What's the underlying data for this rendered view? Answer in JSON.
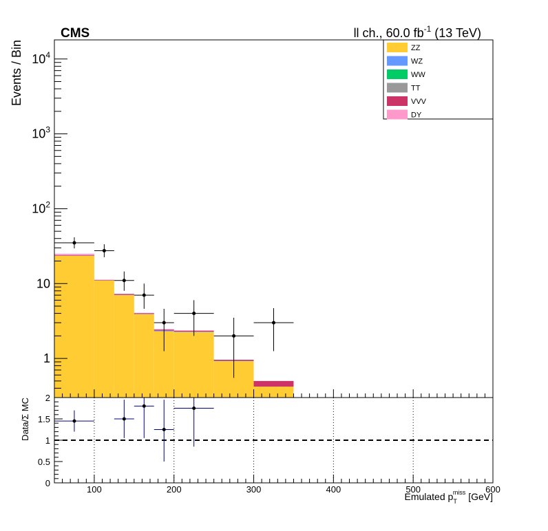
{
  "header": {
    "experiment": "CMS",
    "lumi_prefix": "ll ch., 60.0 fb",
    "lumi_exp": "-1",
    "lumi_suffix": " (13 TeV)"
  },
  "chart_data": [
    {
      "type": "bar",
      "subtype": "stacked-histogram-with-data",
      "ylabel": "Events / Bin",
      "yscale": "log",
      "ylim": [
        0.3,
        18000
      ],
      "xlim": [
        50,
        600
      ],
      "ytick_labels": [
        {
          "value": 1,
          "base": "1",
          "exp": ""
        },
        {
          "value": 10,
          "base": "10",
          "exp": ""
        },
        {
          "value": 100,
          "base": "10",
          "exp": "2"
        },
        {
          "value": 1000,
          "base": "10",
          "exp": "3"
        },
        {
          "value": 10000,
          "base": "10",
          "exp": "4"
        }
      ],
      "bin_edges": [
        50,
        100,
        125,
        150,
        175,
        200,
        250,
        300,
        350,
        400,
        500,
        600
      ],
      "series": [
        {
          "name": "ZZ",
          "color": "#ffcc33",
          "values": [
            23.5,
            11.0,
            7.0,
            3.9,
            2.3,
            2.25,
            0.92,
            0.42,
            0,
            0,
            0
          ]
        },
        {
          "name": "WZ",
          "color": "#6699ff",
          "values": [
            0.1,
            0.05,
            0.05,
            0.03,
            0.05,
            0.03,
            0.01,
            0.0,
            0,
            0,
            0
          ]
        },
        {
          "name": "WW",
          "color": "#00cc66",
          "values": [
            0,
            0,
            0,
            0,
            0,
            0,
            0,
            0,
            0,
            0,
            0
          ]
        },
        {
          "name": "TT",
          "color": "#999999",
          "values": [
            0,
            0,
            0,
            0,
            0,
            0,
            0,
            0,
            0,
            0,
            0
          ]
        },
        {
          "name": "VVV",
          "color": "#cc3366",
          "values": [
            0.4,
            0.15,
            0.2,
            0.1,
            0.08,
            0.07,
            0.03,
            0.08,
            0,
            0,
            0
          ]
        },
        {
          "name": "DY",
          "color": "#ff99cc",
          "values": [
            1.0,
            0.1,
            0.05,
            0.03,
            0.03,
            0.02,
            0.0,
            0.0,
            0,
            0,
            0
          ]
        }
      ],
      "data_points": [
        {
          "x": 75,
          "xlo": 50,
          "xhi": 100,
          "y": 35,
          "ylo": 29.5,
          "yhi": 41.5
        },
        {
          "x": 112.5,
          "xlo": 100,
          "xhi": 125,
          "y": 27.5,
          "ylo": 22.5,
          "yhi": 33.5
        },
        {
          "x": 137.5,
          "xlo": 125,
          "xhi": 150,
          "y": 11,
          "ylo": 8.0,
          "yhi": 14.5
        },
        {
          "x": 162.5,
          "xlo": 150,
          "xhi": 175,
          "y": 7,
          "ylo": 4.6,
          "yhi": 10.0
        },
        {
          "x": 187.5,
          "xlo": 175,
          "xhi": 200,
          "y": 3,
          "ylo": 1.25,
          "yhi": 4.6
        },
        {
          "x": 225,
          "xlo": 200,
          "xhi": 250,
          "y": 4,
          "ylo": 2.0,
          "yhi": 6.0
        },
        {
          "x": 275,
          "xlo": 250,
          "xhi": 300,
          "y": 2,
          "ylo": 0.55,
          "yhi": 3.5
        },
        {
          "x": 325,
          "xlo": 300,
          "xhi": 350,
          "y": 3,
          "ylo": 1.25,
          "yhi": 4.7
        }
      ],
      "legend": {
        "position": "top-right"
      }
    },
    {
      "type": "scatter",
      "subtype": "ratio",
      "ylabel": "Data/Σ MC",
      "xlabel_main": "Emulated p",
      "xlabel_sub": "T",
      "xlabel_sup": "miss",
      "xlabel_unit": " [GeV]",
      "ylim": [
        0,
        2
      ],
      "xlim": [
        50,
        600
      ],
      "xticks": [
        100,
        200,
        300,
        400,
        500,
        600
      ],
      "yticks": [
        "0",
        "0.5",
        "1",
        "1.5",
        "2"
      ],
      "reference_line": 1,
      "points": [
        {
          "x": 75,
          "xlo": 50,
          "xhi": 100,
          "y": 1.45,
          "ylo": 1.2,
          "yhi": 1.7
        },
        {
          "x": 137.5,
          "xlo": 125,
          "xhi": 150,
          "y": 1.5,
          "ylo": 1.05,
          "yhi": 1.95
        },
        {
          "x": 162.5,
          "xlo": 150,
          "xhi": 175,
          "y": 1.8,
          "ylo": 1.05,
          "yhi": 2.0
        },
        {
          "x": 187.5,
          "xlo": 175,
          "xhi": 200,
          "y": 1.25,
          "ylo": 0.5,
          "yhi": 1.95
        },
        {
          "x": 225,
          "xlo": 200,
          "xhi": 250,
          "y": 1.75,
          "ylo": 0.85,
          "yhi": 2.0
        }
      ]
    }
  ]
}
